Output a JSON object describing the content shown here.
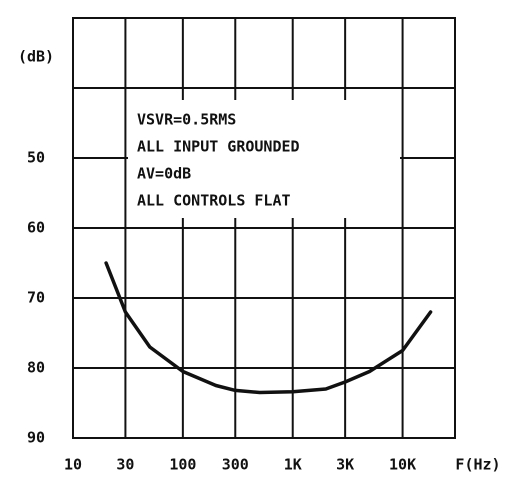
{
  "chart_data": {
    "type": "line",
    "y_axis_label": "(dB)",
    "x_axis_label": "F(Hz)",
    "annotation": [
      "VSVR=0.5RMS",
      "ALL INPUT GROUNDED",
      "AV=0dB",
      "ALL CONTROLS FLAT"
    ],
    "x_log": true,
    "y_inverted": true,
    "xlim": [
      10,
      30000
    ],
    "xticks": [
      10,
      30,
      100,
      300,
      {
        "value": 1000,
        "label": "1K"
      },
      {
        "value": 3000,
        "label": "3K"
      },
      {
        "value": 10000,
        "label": "10K"
      }
    ],
    "ylim": [
      30,
      90
    ],
    "yticks": [
      50,
      60,
      70,
      80,
      90
    ],
    "minor_yticks": [
      40
    ],
    "grid": true,
    "series": [
      {
        "color": "#111111",
        "x": [
          20,
          30,
          50,
          100,
          200,
          300,
          500,
          1000,
          2000,
          3000,
          5000,
          10000,
          18000
        ],
        "values": [
          65,
          72,
          77,
          80.5,
          82.5,
          83.2,
          83.5,
          83.4,
          83,
          82,
          80.5,
          77.5,
          72
        ]
      }
    ]
  }
}
